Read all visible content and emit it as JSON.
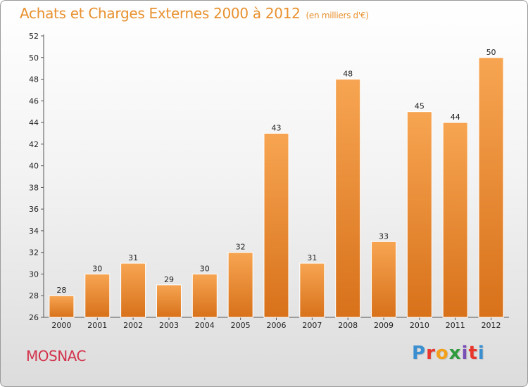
{
  "title_main": "Achats et Charges Externes 2000 à 2012",
  "title_sub": "(en milliers d'€)",
  "commune": "MOSNAC",
  "logo_letters": [
    "P",
    "r",
    "o",
    "x",
    "i",
    "t",
    "i"
  ],
  "colors": {
    "title": "#e8912f",
    "commune": "#d2334b",
    "bar_top": "#f7a552",
    "bar_bottom": "#d8711a"
  },
  "chart_data": {
    "type": "bar",
    "categories": [
      "2000",
      "2001",
      "2002",
      "2003",
      "2004",
      "2005",
      "2006",
      "2007",
      "2008",
      "2009",
      "2010",
      "2011",
      "2012"
    ],
    "values": [
      28,
      30,
      31,
      29,
      30,
      32,
      43,
      31,
      48,
      33,
      45,
      44,
      50
    ],
    "ylim": [
      26,
      52
    ],
    "yticks": [
      26,
      28,
      30,
      32,
      34,
      36,
      38,
      40,
      42,
      44,
      46,
      48,
      50,
      52
    ],
    "grid": false,
    "data_labels": true
  }
}
